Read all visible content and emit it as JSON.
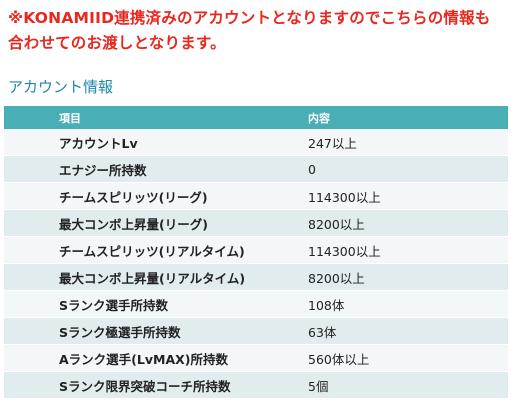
{
  "notice": {
    "line1": "※KONAMIID連携済みのアカウントとなりますのでこちらの情報も",
    "line2": "合わせてのお渡しとなります。"
  },
  "section": {
    "title": "アカウント情報"
  },
  "table": {
    "headers": {
      "item": "項目",
      "content": "内容"
    },
    "rows": [
      {
        "item": "アカウントLv",
        "content": "247以上"
      },
      {
        "item": "エナジー所持数",
        "content": "0"
      },
      {
        "item": "チームスピリッツ(リーグ)",
        "content": "114300以上"
      },
      {
        "item": "最大コンボ上昇量(リーグ)",
        "content": "8200以上"
      },
      {
        "item": "チームスピリッツ(リアルタイム)",
        "content": "114300以上"
      },
      {
        "item": "最大コンボ上昇量(リアルタイム)",
        "content": "8200以上"
      },
      {
        "item": "Sランク選手所持数",
        "content": "108体"
      },
      {
        "item": "Sランク極選手所持数",
        "content": "63体"
      },
      {
        "item": "Aランク選手(LvMAX)所持数",
        "content": "560体以上"
      },
      {
        "item": "Sランク限界突破コーチ所持数",
        "content": "5個"
      }
    ]
  }
}
